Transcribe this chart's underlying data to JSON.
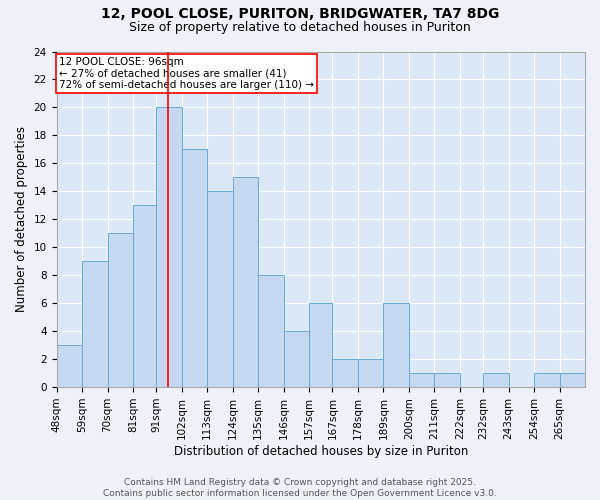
{
  "title_line1": "12, POOL CLOSE, PURITON, BRIDGWATER, TA7 8DG",
  "title_line2": "Size of property relative to detached houses in Puriton",
  "xlabel": "Distribution of detached houses by size in Puriton",
  "ylabel": "Number of detached properties",
  "bin_labels": [
    "48sqm",
    "59sqm",
    "70sqm",
    "81sqm",
    "91sqm",
    "102sqm",
    "113sqm",
    "124sqm",
    "135sqm",
    "146sqm",
    "157sqm",
    "167sqm",
    "178sqm",
    "189sqm",
    "200sqm",
    "211sqm",
    "222sqm",
    "232sqm",
    "243sqm",
    "254sqm",
    "265sqm"
  ],
  "bin_edges": [
    48,
    59,
    70,
    81,
    91,
    102,
    113,
    124,
    135,
    146,
    157,
    167,
    178,
    189,
    200,
    211,
    222,
    232,
    243,
    254,
    265,
    276
  ],
  "counts": [
    3,
    9,
    11,
    13,
    20,
    17,
    14,
    15,
    8,
    4,
    6,
    2,
    2,
    6,
    1,
    1,
    0,
    1,
    0,
    1,
    1
  ],
  "bar_color": "#c5d8ef",
  "bar_edgecolor": "#6aaad4",
  "bar_linewidth": 0.7,
  "red_line_x": 96,
  "annotation_box_text": "12 POOL CLOSE: 96sqm\n← 27% of detached houses are smaller (41)\n72% of semi-detached houses are larger (110) →",
  "ylim": [
    0,
    24
  ],
  "yticks": [
    0,
    2,
    4,
    6,
    8,
    10,
    12,
    14,
    16,
    18,
    20,
    22,
    24
  ],
  "background_color": "#eef2f8",
  "plot_bg_color": "#dce8f5",
  "grid_color": "#ffffff",
  "footer_text": "Contains HM Land Registry data © Crown copyright and database right 2025.\nContains public sector information licensed under the Open Government Licence v3.0.",
  "title_fontsize": 10,
  "subtitle_fontsize": 9,
  "axis_label_fontsize": 8.5,
  "tick_fontsize": 7.5,
  "annotation_fontsize": 7.5,
  "footer_fontsize": 6.5
}
